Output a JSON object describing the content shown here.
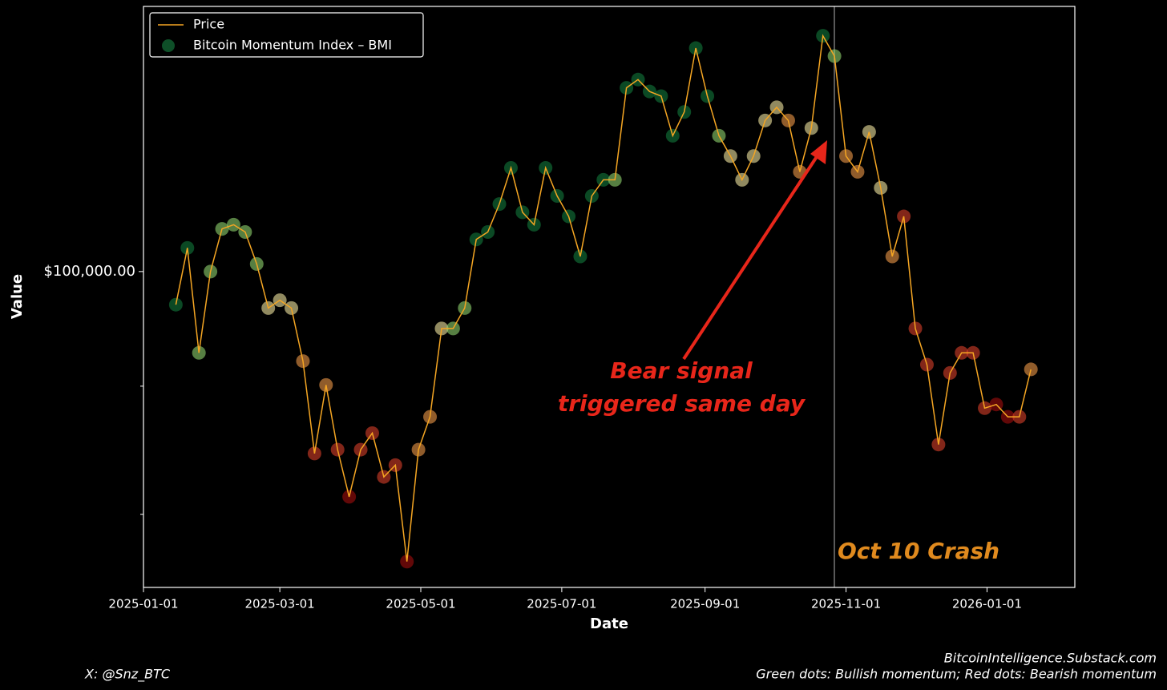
{
  "chart_data": {
    "type": "line",
    "x_label": "Date",
    "y_label": "Value",
    "log_y": true,
    "xlim": [
      "2025-01-01",
      "2026-02-08"
    ],
    "xticks": [
      "2025-01-01",
      "2025-03-01",
      "2025-05-01",
      "2025-07-01",
      "2025-09-01",
      "2025-11-01",
      "2026-01-01"
    ],
    "ylim": [
      74800,
      127600
    ],
    "yticks": [
      {
        "value": 100000,
        "label": "$100,000.00"
      }
    ],
    "yticks_minor": [
      80000,
      90000
    ],
    "legend": "upper left",
    "x": [
      "2025-01-15",
      "2025-01-20",
      "2025-01-25",
      "2025-01-30",
      "2025-02-04",
      "2025-02-09",
      "2025-02-14",
      "2025-02-19",
      "2025-02-24",
      "2025-03-01",
      "2025-03-06",
      "2025-03-11",
      "2025-03-16",
      "2025-03-21",
      "2025-03-26",
      "2025-03-31",
      "2025-04-05",
      "2025-04-10",
      "2025-04-15",
      "2025-04-20",
      "2025-04-25",
      "2025-04-30",
      "2025-05-05",
      "2025-05-10",
      "2025-05-15",
      "2025-05-20",
      "2025-05-25",
      "2025-05-30",
      "2025-06-04",
      "2025-06-09",
      "2025-06-14",
      "2025-06-19",
      "2025-06-24",
      "2025-06-29",
      "2025-07-04",
      "2025-07-09",
      "2025-07-14",
      "2025-07-19",
      "2025-07-24",
      "2025-07-29",
      "2025-08-03",
      "2025-08-08",
      "2025-08-13",
      "2025-08-18",
      "2025-08-23",
      "2025-08-28",
      "2025-09-02",
      "2025-09-07",
      "2025-09-12",
      "2025-09-17",
      "2025-09-22",
      "2025-09-27",
      "2025-10-02",
      "2025-10-07",
      "2025-10-12",
      "2025-10-17",
      "2025-10-22",
      "2025-10-27",
      "2025-11-01",
      "2025-11-06",
      "2025-11-11",
      "2025-11-16",
      "2025-11-21",
      "2025-11-26",
      "2025-12-01",
      "2025-12-06",
      "2025-12-11",
      "2025-12-16",
      "2025-12-21",
      "2025-12-26",
      "2025-12-31",
      "2026-01-05",
      "2026-01-10",
      "2026-01-15",
      "2026-01-20"
    ],
    "series": [
      {
        "name": "Price",
        "color": "#f5a623",
        "values": [
          97000,
          102200,
          92800,
          100000,
          104000,
          104400,
          103700,
          100700,
          96700,
          97400,
          96700,
          92100,
          84600,
          90100,
          84900,
          81300,
          84900,
          86200,
          82800,
          83700,
          76600,
          84900,
          87500,
          94900,
          94900,
          96700,
          103000,
          103700,
          106400,
          110000,
          105600,
          104400,
          110000,
          107200,
          105200,
          101400,
          107200,
          108800,
          108800,
          118400,
          119300,
          118000,
          117500,
          113300,
          115800,
          122800,
          117500,
          113300,
          111200,
          108800,
          111200,
          114900,
          116300,
          114900,
          109600,
          114100,
          124200,
          121900,
          111200,
          109600,
          113700,
          108000,
          101400,
          105200,
          94900,
          91800,
          85300,
          91100,
          92800,
          92800,
          88200,
          88500,
          87500,
          87500,
          91400
        ]
      },
      {
        "name": "Bitcoin Momentum Index – BMI",
        "color": "#0e4f28",
        "colors": [
          "#127a3c",
          "#127a3c",
          "#8fd46e",
          "#8fd46e",
          "#8fd46e",
          "#8fd46e",
          "#8fd46e",
          "#8fd46e",
          "#f2e6a0",
          "#f2e6a0",
          "#f2e6a0",
          "#f09a48",
          "#d8402a",
          "#f09a48",
          "#d8402a",
          "#a40d0d",
          "#d8402a",
          "#d8402a",
          "#d8402a",
          "#d8402a",
          "#a40d0d",
          "#f09a48",
          "#f09a48",
          "#f2e6a0",
          "#8fd46e",
          "#8fd46e",
          "#127a3c",
          "#127a3c",
          "#127a3c",
          "#127a3c",
          "#127a3c",
          "#127a3c",
          "#127a3c",
          "#127a3c",
          "#127a3c",
          "#127a3c",
          "#127a3c",
          "#127a3c",
          "#8fd46e",
          "#127a3c",
          "#127a3c",
          "#127a3c",
          "#127a3c",
          "#127a3c",
          "#127a3c",
          "#127a3c",
          "#127a3c",
          "#8fd46e",
          "#f2e6a0",
          "#f2e6a0",
          "#f2e6a0",
          "#f2e6a0",
          "#f2e6a0",
          "#f09a48",
          "#f09a48",
          "#f2e6a0",
          "#127a3c",
          "#8fd46e",
          "#f09a48",
          "#f09a48",
          "#f2e6a0",
          "#f2e6a0",
          "#f09a48",
          "#d8402a",
          "#d8402a",
          "#d8402a",
          "#d8402a",
          "#d8402a",
          "#d8402a",
          "#d8402a",
          "#d8402a",
          "#a40d0d",
          "#a40d0d",
          "#d8402a",
          "#f09a48"
        ]
      }
    ],
    "annotations": {
      "bear_signal": [
        "Bear signal",
        "triggered same day"
      ],
      "crash": "Oct 10 Crash"
    },
    "footer": {
      "left": "X: @Snz_BTC",
      "right": [
        "BitcoinIntelligence.Substack.com",
        "Green dots: Bullish momentum; Red dots: Bearish momentum"
      ]
    }
  }
}
